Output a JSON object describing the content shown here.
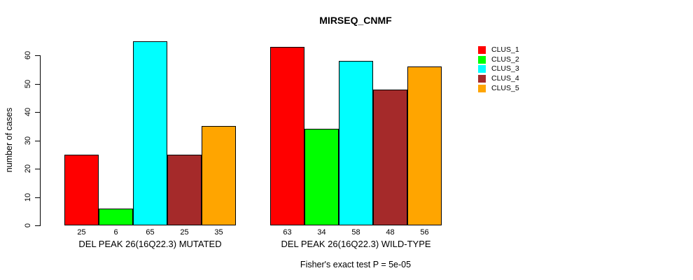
{
  "chart_data": {
    "type": "bar",
    "title": "MIRSEQ_CNMF",
    "xlabel": "",
    "ylabel": "number of cases",
    "ylim": [
      0,
      65
    ],
    "yticks": [
      0,
      10,
      20,
      30,
      40,
      50,
      60
    ],
    "grid": false,
    "legend_position": "right",
    "categories": [
      "DEL PEAK 26(16Q22.3) MUTATED",
      "DEL PEAK 26(16Q22.3) WILD-TYPE"
    ],
    "series": [
      {
        "name": "CLUS_1",
        "color": "#FF0000",
        "values": [
          25,
          63
        ]
      },
      {
        "name": "CLUS_2",
        "color": "#00FF00",
        "values": [
          6,
          34
        ]
      },
      {
        "name": "CLUS_3",
        "color": "#00FFFF",
        "values": [
          65,
          58
        ]
      },
      {
        "name": "CLUS_4",
        "color": "#A52A2A",
        "values": [
          25,
          48
        ]
      },
      {
        "name": "CLUS_5",
        "color": "#FFA500",
        "values": [
          35,
          56
        ]
      }
    ],
    "bar_value_labels_shown": true,
    "annotation": "Fisher's exact test P = 5e-05"
  },
  "colors": {
    "background": "#FFFFFF",
    "axis": "#000000",
    "text": "#000000",
    "bar_border": "#000000"
  }
}
